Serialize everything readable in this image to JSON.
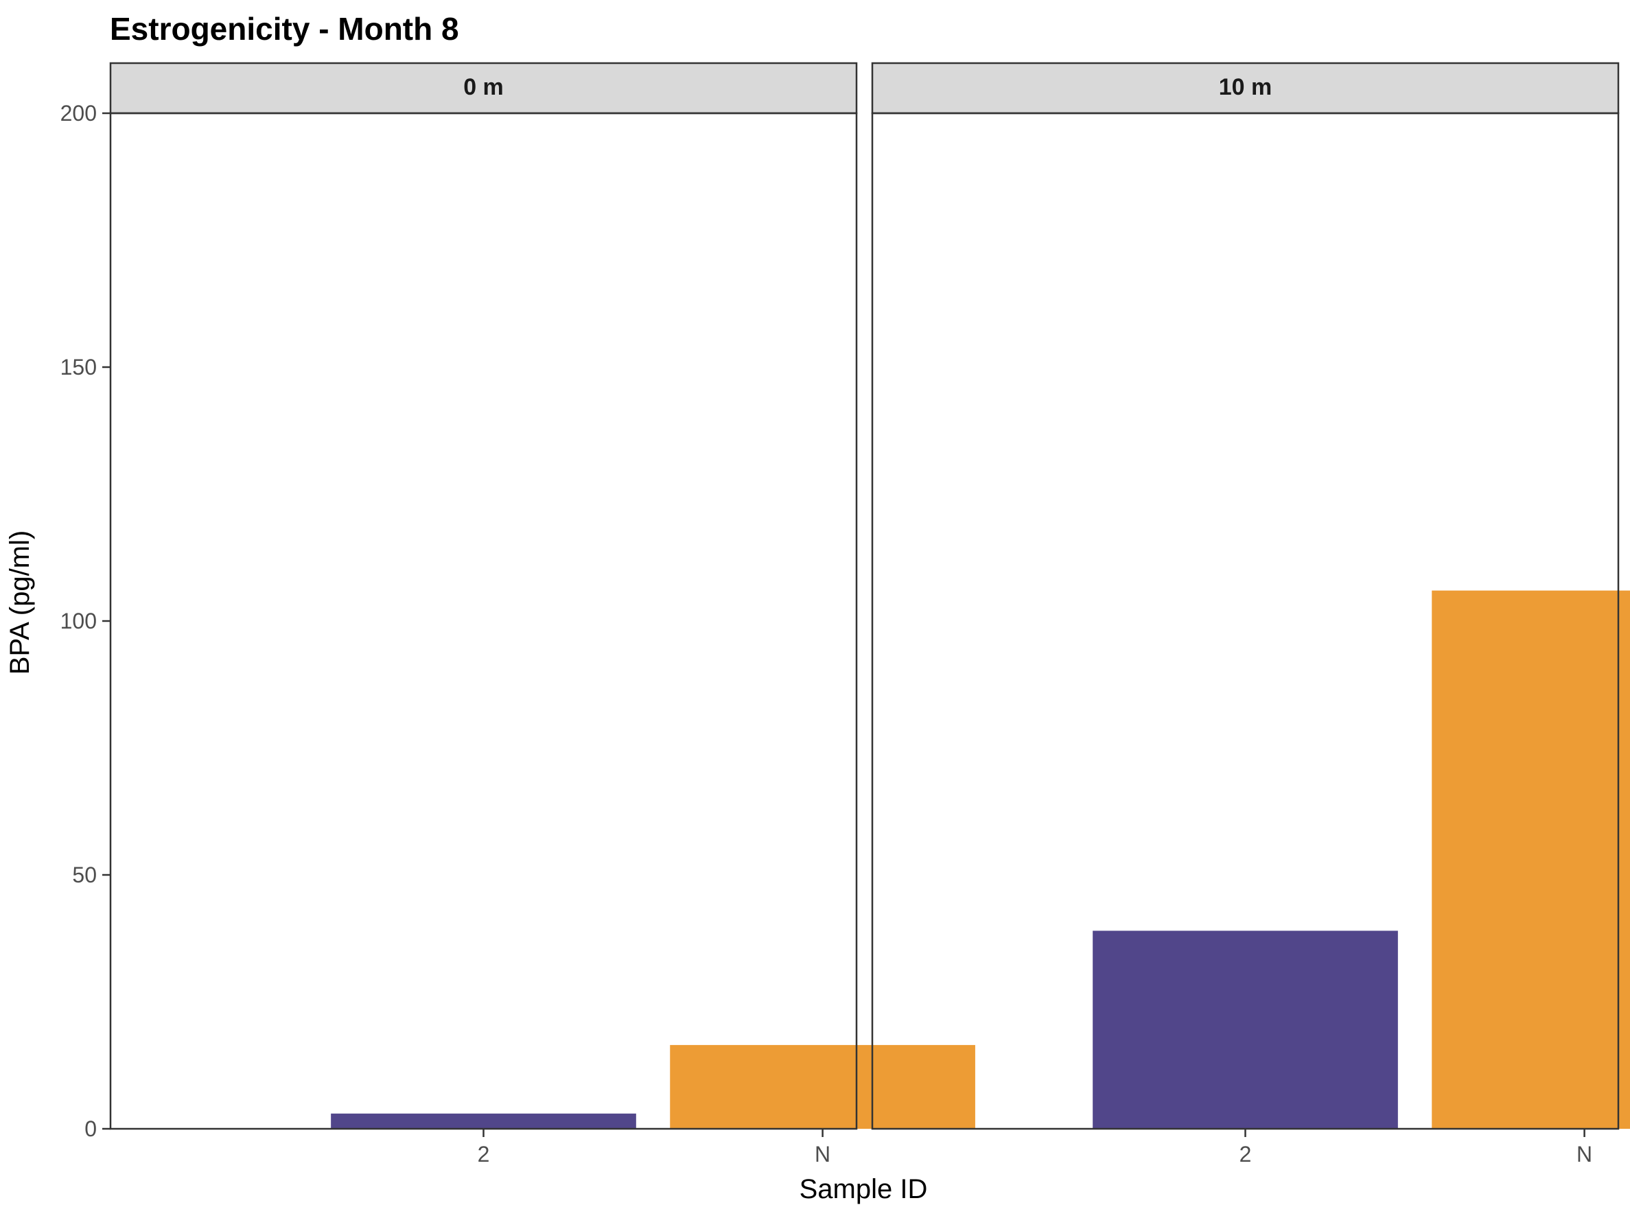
{
  "chart_data": {
    "type": "bar",
    "title": "Estrogenicity - Month 8",
    "xlabel": "Sample ID",
    "ylabel": "BPA (pg/ml)",
    "ylim": [
      0,
      200
    ],
    "yticks": [
      0,
      50,
      100,
      150,
      200
    ],
    "grid": false,
    "legend": "none",
    "categories": [
      "2",
      "N"
    ],
    "colors": [
      "#51468a",
      "#ed9c35"
    ],
    "panels": [
      {
        "label": "0 m",
        "values": [
          3,
          16.5
        ]
      },
      {
        "label": "10 m",
        "values": [
          39,
          106
        ]
      }
    ]
  }
}
